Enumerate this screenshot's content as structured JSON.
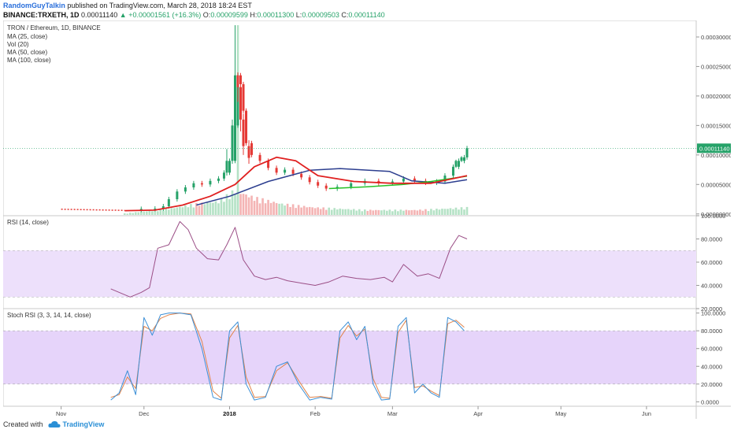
{
  "header": {
    "author": "RandomGuyTalkin",
    "published": "published on TradingView.com, March 28, 2018 18:24 EST",
    "symbol": "BINANCE:TRXETH, 1D",
    "last": "0.00011140",
    "change": "+0.00001561 (+16.3%)",
    "o_label": "O:",
    "o": "0.00009599",
    "h_label": "H:",
    "h": "0.00011300",
    "l_label": "L:",
    "l": "0.00009503",
    "c_label": "C:",
    "c": "0.00011140"
  },
  "footer": {
    "created_with": "Created with",
    "brand": "TradingView"
  },
  "colors": {
    "up": "#26a269",
    "down": "#e53935",
    "ma25": "#e02020",
    "ma50": "#2c3e8f",
    "ma100": "#26c126",
    "vol_up": "#b5e2c6",
    "vol_down": "#f4b4b4",
    "rsi_line": "#9b4e86",
    "rsi_band": "#ede0fb",
    "stoch_k": "#3b8fd6",
    "stoch_d": "#e0834a",
    "stoch_band": "#e6d4fa"
  },
  "chart_data": [
    {
      "type": "candlestick",
      "title": "TRON / Ethereum, 1D, BINANCE",
      "indicators": [
        "MA (25, close)",
        "Vol (20)",
        "MA (50, close)",
        "MA (100, close)"
      ],
      "price_label": "0.00011140",
      "y_ticks": [
        "0.00030000",
        "0.00025000",
        "0.00020000",
        "0.00015000",
        "0.00010000",
        "0.00005000",
        "0.00000000"
      ],
      "ylim": [
        -3e-06,
        0.000328
      ],
      "x_ticks": [
        "Nov",
        "Dec",
        "2018",
        "Feb",
        "Mar",
        "Apr",
        "May",
        "Jun"
      ],
      "x_tick_dates": [
        "2017-11-01",
        "2017-12-01",
        "2018-01-01",
        "2018-02-01",
        "2018-03-01",
        "2018-04-01",
        "2018-05-01",
        "2018-06-01"
      ],
      "xlim": [
        "2017-10-11",
        "2018-06-19"
      ],
      "closes": [
        {
          "d": "2017-11-24",
          "c": 7e-06
        },
        {
          "d": "2017-11-30",
          "c": 8.5e-06
        },
        {
          "d": "2017-12-05",
          "c": 9e-06
        },
        {
          "d": "2017-12-08",
          "c": 1.3e-05
        },
        {
          "d": "2017-12-10",
          "c": 2.5e-05
        },
        {
          "d": "2017-12-13",
          "c": 3.8e-05
        },
        {
          "d": "2017-12-16",
          "c": 4.5e-05
        },
        {
          "d": "2017-12-19",
          "c": 5.2e-05
        },
        {
          "d": "2017-12-22",
          "c": 5e-05
        },
        {
          "d": "2017-12-25",
          "c": 5.6e-05
        },
        {
          "d": "2017-12-28",
          "c": 6e-05
        },
        {
          "d": "2017-12-30",
          "c": 7e-05
        },
        {
          "d": "2018-01-01",
          "c": 9e-05
        },
        {
          "d": "2018-01-03",
          "c": 0.00015
        },
        {
          "d": "2018-01-04",
          "c": 0.000235
        },
        {
          "d": "2018-01-05",
          "c": 0.00022
        },
        {
          "d": "2018-01-06",
          "c": 0.000175
        },
        {
          "d": "2018-01-07",
          "c": 0.00012
        },
        {
          "d": "2018-01-09",
          "c": 0.0001
        },
        {
          "d": "2018-01-12",
          "c": 9e-05
        },
        {
          "d": "2018-01-15",
          "c": 7.8e-05
        },
        {
          "d": "2018-01-18",
          "c": 7e-05
        },
        {
          "d": "2018-01-21",
          "c": 7.5e-05
        },
        {
          "d": "2018-01-24",
          "c": 6.8e-05
        },
        {
          "d": "2018-01-27",
          "c": 6.2e-05
        },
        {
          "d": "2018-01-30",
          "c": 5.4e-05
        },
        {
          "d": "2018-02-02",
          "c": 4.8e-05
        },
        {
          "d": "2018-02-05",
          "c": 4.3e-05
        },
        {
          "d": "2018-02-09",
          "c": 4.6e-05
        },
        {
          "d": "2018-02-14",
          "c": 5.2e-05
        },
        {
          "d": "2018-02-19",
          "c": 5.6e-05
        },
        {
          "d": "2018-02-24",
          "c": 5.2e-05
        },
        {
          "d": "2018-03-01",
          "c": 5.5e-05
        },
        {
          "d": "2018-03-05",
          "c": 6e-05
        },
        {
          "d": "2018-03-09",
          "c": 5.6e-05
        },
        {
          "d": "2018-03-13",
          "c": 5.3e-05
        },
        {
          "d": "2018-03-17",
          "c": 5.5e-05
        },
        {
          "d": "2018-03-20",
          "c": 6.5e-05
        },
        {
          "d": "2018-03-23",
          "c": 8e-05
        },
        {
          "d": "2018-03-25",
          "c": 9e-05
        },
        {
          "d": "2018-03-27",
          "c": 9.6e-05
        },
        {
          "d": "2018-03-28",
          "c": 0.0001114
        }
      ],
      "candles": [
        {
          "d": "2017-12-31",
          "o": 7e-05,
          "h": 0.00011,
          "l": 6.5e-05,
          "c": 9e-05
        },
        {
          "d": "2018-01-02",
          "o": 9e-05,
          "h": 0.00016,
          "l": 8.5e-05,
          "c": 0.00015
        },
        {
          "d": "2018-01-03",
          "o": 0.00015,
          "h": 0.00032,
          "l": 0.00014,
          "c": 0.000235
        },
        {
          "d": "2018-01-04",
          "o": 0.000235,
          "h": 0.00024,
          "l": 0.00019,
          "c": 0.000215
        },
        {
          "d": "2018-01-05",
          "o": 0.000215,
          "h": 0.000225,
          "l": 0.00014,
          "c": 0.00016
        },
        {
          "d": "2018-01-06",
          "o": 0.00016,
          "h": 0.00017,
          "l": 0.0001,
          "c": 0.000115
        },
        {
          "d": "2018-01-08",
          "o": 0.000115,
          "h": 0.000125,
          "l": 8.5e-05,
          "c": 9.5e-05
        },
        {
          "d": "2018-03-24",
          "o": 8e-05,
          "h": 9.2e-05,
          "l": 7.8e-05,
          "c": 9e-05
        },
        {
          "d": "2018-03-26",
          "o": 9e-05,
          "h": 9.8e-05,
          "l": 8.8e-05,
          "c": 9.6e-05
        },
        {
          "d": "2018-03-28",
          "o": 9.6e-05,
          "h": 0.000113,
          "l": 9.5e-05,
          "c": 0.0001114
        }
      ],
      "ma25": [
        {
          "d": "2017-11-24",
          "v": 5.5e-06
        },
        {
          "d": "2017-12-05",
          "v": 6.5e-06
        },
        {
          "d": "2017-12-15",
          "v": 1.5e-05
        },
        {
          "d": "2017-12-25",
          "v": 3e-05
        },
        {
          "d": "2018-01-03",
          "v": 5e-05
        },
        {
          "d": "2018-01-10",
          "v": 8e-05
        },
        {
          "d": "2018-01-18",
          "v": 9.6e-05
        },
        {
          "d": "2018-01-25",
          "v": 9e-05
        },
        {
          "d": "2018-02-02",
          "v": 6.5e-05
        },
        {
          "d": "2018-02-15",
          "v": 5.5e-05
        },
        {
          "d": "2018-03-01",
          "v": 5.2e-05
        },
        {
          "d": "2018-03-15",
          "v": 5.2e-05
        },
        {
          "d": "2018-03-28",
          "v": 6.5e-05
        }
      ],
      "ma50": [
        {
          "d": "2017-12-20",
          "v": 1.5e-05
        },
        {
          "d": "2018-01-01",
          "v": 3e-05
        },
        {
          "d": "2018-01-15",
          "v": 5.5e-05
        },
        {
          "d": "2018-01-30",
          "v": 7.4e-05
        },
        {
          "d": "2018-02-10",
          "v": 7.7e-05
        },
        {
          "d": "2018-02-28",
          "v": 7.2e-05
        },
        {
          "d": "2018-03-08",
          "v": 5.6e-05
        },
        {
          "d": "2018-03-20",
          "v": 5.2e-05
        },
        {
          "d": "2018-03-28",
          "v": 5.8e-05
        }
      ],
      "ma100": [
        {
          "d": "2018-02-06",
          "v": 4.3e-05
        },
        {
          "d": "2018-02-20",
          "v": 4.6e-05
        },
        {
          "d": "2018-03-05",
          "v": 5e-05
        },
        {
          "d": "2018-03-15",
          "v": 5.5e-05
        },
        {
          "d": "2018-03-28",
          "v": 6.4e-05
        }
      ],
      "volume_ratio": [
        {
          "d": "2017-11-24",
          "v": 0.06
        },
        {
          "d": "2017-12-10",
          "v": 0.25
        },
        {
          "d": "2017-12-20",
          "v": 0.45
        },
        {
          "d": "2017-12-28",
          "v": 0.55
        },
        {
          "d": "2018-01-03",
          "v": 1.0
        },
        {
          "d": "2018-01-10",
          "v": 0.7
        },
        {
          "d": "2018-01-20",
          "v": 0.45
        },
        {
          "d": "2018-02-01",
          "v": 0.3
        },
        {
          "d": "2018-02-20",
          "v": 0.2
        },
        {
          "d": "2018-03-10",
          "v": 0.2
        },
        {
          "d": "2018-03-28",
          "v": 0.3
        }
      ]
    },
    {
      "type": "line",
      "title": "RSI (14, close)",
      "y_ticks": [
        "100.0000",
        "80.0000",
        "60.0000",
        "40.0000",
        "20.0000"
      ],
      "ylim": [
        20,
        100
      ],
      "band": [
        30,
        70
      ],
      "x": [
        "2017-11-19",
        "2017-11-26",
        "2017-11-30",
        "2017-12-03",
        "2017-12-06",
        "2017-12-10",
        "2017-12-14",
        "2017-12-17",
        "2017-12-20",
        "2017-12-24",
        "2017-12-28",
        "2017-12-31",
        "2018-01-03",
        "2018-01-06",
        "2018-01-10",
        "2018-01-14",
        "2018-01-18",
        "2018-01-22",
        "2018-01-27",
        "2018-02-01",
        "2018-02-06",
        "2018-02-11",
        "2018-02-16",
        "2018-02-21",
        "2018-02-26",
        "2018-03-01",
        "2018-03-05",
        "2018-03-10",
        "2018-03-14",
        "2018-03-18",
        "2018-03-22",
        "2018-03-25",
        "2018-03-28"
      ],
      "values": [
        37,
        30,
        34,
        38,
        72,
        75,
        95,
        88,
        72,
        63,
        62,
        75,
        90,
        62,
        48,
        45,
        47,
        44,
        42,
        40,
        43,
        48,
        46,
        45,
        47,
        43,
        58,
        48,
        50,
        46,
        72,
        83,
        80
      ]
    },
    {
      "type": "line",
      "title": "Stoch RSI (3, 3, 14, 14, close)",
      "y_ticks": [
        "100.0000",
        "80.0000",
        "60.0000",
        "40.0000",
        "20.0000",
        "0.0000"
      ],
      "ylim": [
        -5,
        105
      ],
      "band": [
        20,
        80
      ],
      "x": [
        "2017-11-19",
        "2017-11-22",
        "2017-11-25",
        "2017-11-28",
        "2017-12-01",
        "2017-12-04",
        "2017-12-07",
        "2017-12-10",
        "2017-12-14",
        "2017-12-18",
        "2017-12-22",
        "2017-12-26",
        "2017-12-29",
        "2018-01-01",
        "2018-01-04",
        "2018-01-07",
        "2018-01-10",
        "2018-01-14",
        "2018-01-18",
        "2018-01-22",
        "2018-01-26",
        "2018-01-30",
        "2018-02-03",
        "2018-02-07",
        "2018-02-10",
        "2018-02-13",
        "2018-02-16",
        "2018-02-19",
        "2018-02-22",
        "2018-02-25",
        "2018-02-28",
        "2018-03-03",
        "2018-03-06",
        "2018-03-09",
        "2018-03-12",
        "2018-03-15",
        "2018-03-18",
        "2018-03-21",
        "2018-03-24",
        "2018-03-27"
      ],
      "k": [
        2,
        10,
        35,
        8,
        95,
        75,
        98,
        100,
        100,
        98,
        60,
        5,
        2,
        80,
        90,
        20,
        2,
        5,
        40,
        45,
        20,
        2,
        5,
        3,
        80,
        90,
        70,
        85,
        20,
        2,
        3,
        85,
        95,
        10,
        20,
        10,
        5,
        95,
        90,
        80
      ],
      "d": [
        5,
        8,
        28,
        15,
        85,
        80,
        94,
        98,
        100,
        99,
        68,
        12,
        4,
        72,
        86,
        28,
        5,
        6,
        35,
        44,
        24,
        5,
        6,
        4,
        72,
        86,
        74,
        82,
        26,
        5,
        4,
        78,
        92,
        16,
        18,
        12,
        7,
        88,
        92,
        84
      ]
    }
  ]
}
